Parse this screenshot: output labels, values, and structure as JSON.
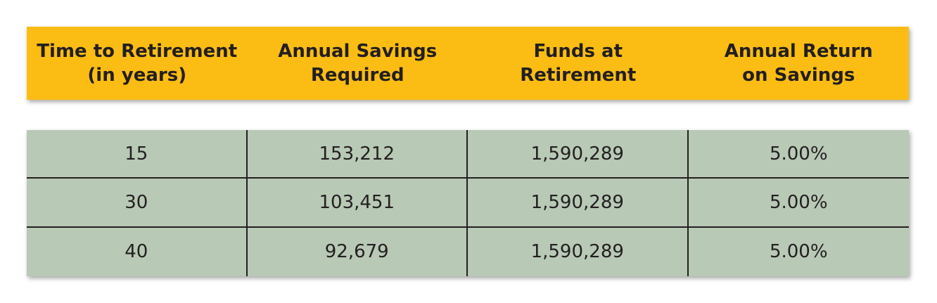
{
  "table": {
    "headers": [
      "Time to Retirement\n(in years)",
      "Annual Savings\nRequired",
      "Funds at\nRetirement",
      "Annual Return\non Savings"
    ],
    "rows": [
      [
        "15",
        "153,212",
        "1,590,289",
        "5.00%"
      ],
      [
        "30",
        "103,451",
        "1,590,289",
        "5.00%"
      ],
      [
        "40",
        "92,679",
        "1,590,289",
        "5.00%"
      ]
    ]
  },
  "colors": {
    "header_background": "#fbbd14",
    "body_background": "#b8c9b6",
    "text": "#231f20"
  }
}
